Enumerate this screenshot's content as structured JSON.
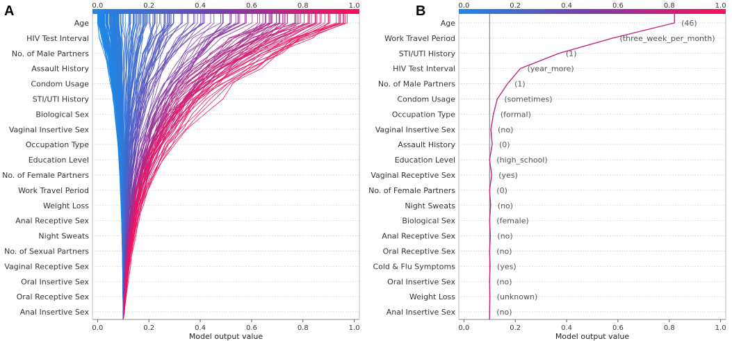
{
  "chart_data": [
    {
      "panel": "A",
      "type": "line",
      "title": "",
      "xlabel": "Model output value",
      "xlim": [
        -0.02,
        1.02
      ],
      "xticks": [
        "0.0",
        "0.2",
        "0.4",
        "0.6",
        "0.8",
        "1.0"
      ],
      "colorbar_ticks": [
        "0.0",
        "0.2",
        "0.4",
        "0.6",
        "0.8",
        "1.0"
      ],
      "features": [
        "Age",
        "HIV Test Interval",
        "No. of Male Partners",
        "Assault History",
        "Condom Usage",
        "STI/UTI History",
        "Biological Sex",
        "Vaginal Insertive Sex",
        "Occupation Type",
        "Education Level",
        "No. of Female Partners",
        "Work Travel Period",
        "Weight Loss",
        "Anal Receptive Sex",
        "Night Sweats",
        "No. of Sexual Partners",
        "Vaginal Receptive Sex",
        "Oral Insertive Sex",
        "Oral Receptive Sex",
        "Anal Insertive Sex"
      ],
      "base_value": 0.1,
      "n_samples": 260
    },
    {
      "panel": "B",
      "type": "line",
      "title": "",
      "xlabel": "Model output value",
      "xlim": [
        -0.02,
        1.02
      ],
      "xticks": [
        "0.0",
        "0.2",
        "0.4",
        "0.6",
        "0.8",
        "1.0"
      ],
      "colorbar_ticks": [
        "0.0",
        "0.2",
        "0.4",
        "0.6",
        "0.8",
        "1.0"
      ],
      "base_value": 0.1,
      "features": [
        {
          "name": "Age",
          "value": "(46)",
          "x": 0.82
        },
        {
          "name": "Work Travel Period",
          "value": "(three_week_per_month)",
          "x": 0.58
        },
        {
          "name": "STI/UTI History",
          "value": "(1)",
          "x": 0.37
        },
        {
          "name": "HIV Test Interval",
          "value": "(year_more)",
          "x": 0.22
        },
        {
          "name": "No. of Male Partners",
          "value": "(1)",
          "x": 0.17
        },
        {
          "name": "Condom Usage",
          "value": "(sometimes)",
          "x": 0.13
        },
        {
          "name": "Occupation Type",
          "value": "(formal)",
          "x": 0.115
        },
        {
          "name": "Vaginal Insertive Sex",
          "value": "(no)",
          "x": 0.105
        },
        {
          "name": "Assault History",
          "value": "(0)",
          "x": 0.11
        },
        {
          "name": "Education Level",
          "value": "(high_school)",
          "x": 0.1
        },
        {
          "name": "Vaginal Receptive Sex",
          "value": "(yes)",
          "x": 0.108
        },
        {
          "name": "No. of Female Partners",
          "value": "(0)",
          "x": 0.1
        },
        {
          "name": "Night Sweats",
          "value": "(no)",
          "x": 0.104
        },
        {
          "name": "Biological Sex",
          "value": "(female)",
          "x": 0.1
        },
        {
          "name": "Anal Receptive Sex",
          "value": "(no)",
          "x": 0.103
        },
        {
          "name": "Oral Receptive Sex",
          "value": "(no)",
          "x": 0.1
        },
        {
          "name": "Cold & Flu Symptoms",
          "value": "(yes)",
          "x": 0.102
        },
        {
          "name": "Oral Insertive Sex",
          "value": "(no)",
          "x": 0.1
        },
        {
          "name": "Weight Loss",
          "value": "(unknown)",
          "x": 0.101
        },
        {
          "name": "Anal Insertive Sex",
          "value": "(no)",
          "x": 0.1
        }
      ]
    }
  ],
  "colors": {
    "low": "#1e88e5",
    "mid": "#7c3aa8",
    "high": "#ff0d57",
    "grid": "#cccccc"
  }
}
